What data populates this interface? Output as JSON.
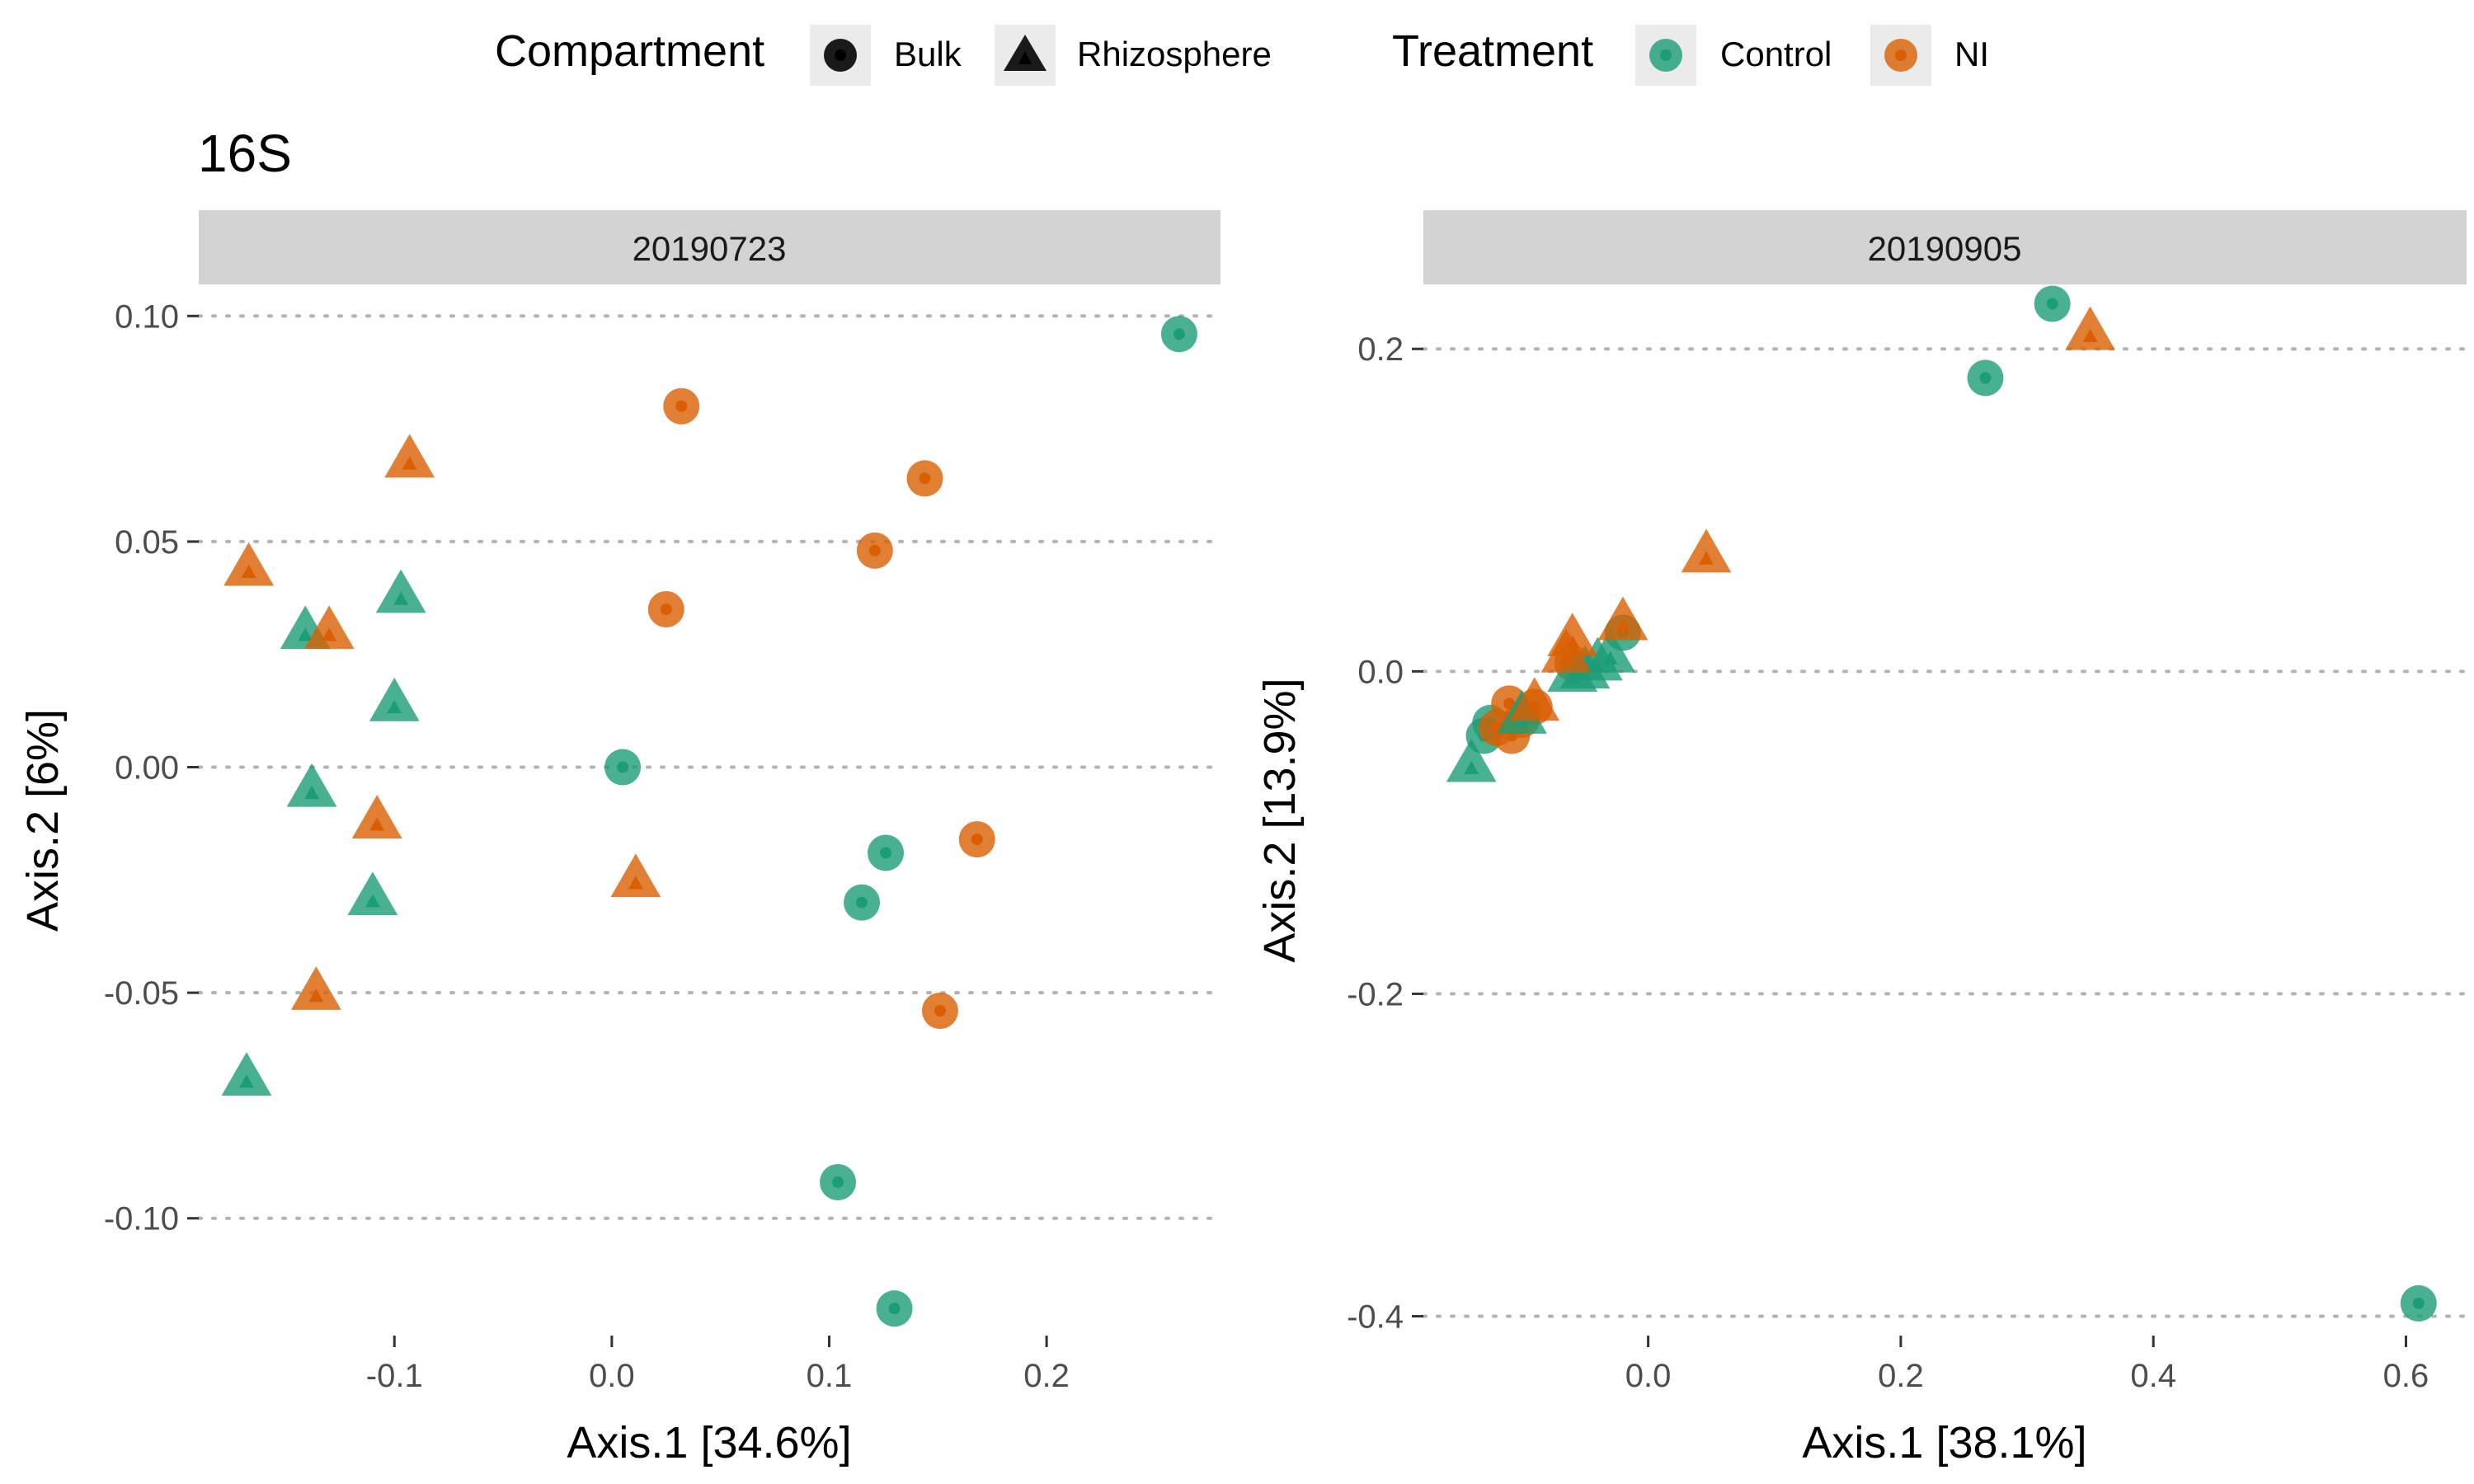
{
  "title": "16S",
  "legend": {
    "shape_title": "Compartment",
    "shape_items": [
      {
        "label": "Bulk",
        "shape": "circle"
      },
      {
        "label": "Rhizosphere",
        "shape": "triangle"
      }
    ],
    "color_title": "Treatment",
    "color_items": [
      {
        "label": "Control",
        "color": "#1b9e77"
      },
      {
        "label": "NI",
        "color": "#d95f02"
      }
    ],
    "position": "top"
  },
  "chart_data": [
    {
      "type": "scatter",
      "facet": "20190723",
      "xlabel": "Axis.1   [34.6%]",
      "ylabel": "Axis.2   [6%]",
      "xticks": [
        -0.1,
        0.0,
        0.1,
        0.2
      ],
      "xtick_labels": [
        "-0.1",
        "0.0",
        "0.1",
        "0.2"
      ],
      "yticks": [
        -0.1,
        -0.05,
        0.0,
        0.05,
        0.1
      ],
      "ytick_labels": [
        "-0.10",
        "-0.05",
        "0.00",
        "0.05",
        "0.10"
      ],
      "xlim": [
        -0.19,
        0.28
      ],
      "ylim": [
        -0.126,
        0.107
      ],
      "grid": "horizontal dotted",
      "points": [
        {
          "x": 0.261,
          "y": 0.096,
          "compartment": "Bulk",
          "treatment": "Control"
        },
        {
          "x": 0.005,
          "y": 0.0,
          "compartment": "Bulk",
          "treatment": "Control"
        },
        {
          "x": 0.126,
          "y": -0.019,
          "compartment": "Bulk",
          "treatment": "Control"
        },
        {
          "x": 0.115,
          "y": -0.03,
          "compartment": "Bulk",
          "treatment": "Control"
        },
        {
          "x": 0.104,
          "y": -0.092,
          "compartment": "Bulk",
          "treatment": "Control"
        },
        {
          "x": 0.13,
          "y": -0.12,
          "compartment": "Bulk",
          "treatment": "Control"
        },
        {
          "x": 0.032,
          "y": 0.08,
          "compartment": "Bulk",
          "treatment": "NI"
        },
        {
          "x": 0.144,
          "y": 0.064,
          "compartment": "Bulk",
          "treatment": "NI"
        },
        {
          "x": 0.121,
          "y": 0.048,
          "compartment": "Bulk",
          "treatment": "NI"
        },
        {
          "x": 0.025,
          "y": 0.035,
          "compartment": "Bulk",
          "treatment": "NI"
        },
        {
          "x": 0.168,
          "y": -0.016,
          "compartment": "Bulk",
          "treatment": "NI"
        },
        {
          "x": 0.151,
          "y": -0.054,
          "compartment": "Bulk",
          "treatment": "NI"
        },
        {
          "x": -0.141,
          "y": 0.03,
          "compartment": "Rhizosphere",
          "treatment": "Control"
        },
        {
          "x": -0.097,
          "y": 0.038,
          "compartment": "Rhizosphere",
          "treatment": "Control"
        },
        {
          "x": -0.1,
          "y": 0.014,
          "compartment": "Rhizosphere",
          "treatment": "Control"
        },
        {
          "x": -0.138,
          "y": -0.005,
          "compartment": "Rhizosphere",
          "treatment": "Control"
        },
        {
          "x": -0.11,
          "y": -0.029,
          "compartment": "Rhizosphere",
          "treatment": "Control"
        },
        {
          "x": -0.168,
          "y": -0.069,
          "compartment": "Rhizosphere",
          "treatment": "Control"
        },
        {
          "x": -0.093,
          "y": 0.068,
          "compartment": "Rhizosphere",
          "treatment": "NI"
        },
        {
          "x": -0.167,
          "y": 0.044,
          "compartment": "Rhizosphere",
          "treatment": "NI"
        },
        {
          "x": -0.13,
          "y": 0.03,
          "compartment": "Rhizosphere",
          "treatment": "NI"
        },
        {
          "x": -0.108,
          "y": -0.012,
          "compartment": "Rhizosphere",
          "treatment": "NI"
        },
        {
          "x": 0.011,
          "y": -0.025,
          "compartment": "Rhizosphere",
          "treatment": "NI"
        },
        {
          "x": -0.136,
          "y": -0.05,
          "compartment": "Rhizosphere",
          "treatment": "NI"
        }
      ]
    },
    {
      "type": "scatter",
      "facet": "20190905",
      "xlabel": "Axis.1   [38.1%]",
      "ylabel": "Axis.2   [13.9%]",
      "xticks": [
        0.0,
        0.2,
        0.4,
        0.6
      ],
      "xtick_labels": [
        "0.0",
        "0.2",
        "0.4",
        "0.6"
      ],
      "yticks": [
        -0.4,
        -0.2,
        0.0,
        0.2
      ],
      "ytick_labels": [
        "-0.4",
        "-0.2",
        "0.0",
        "0.2"
      ],
      "xlim": [
        -0.178,
        0.648
      ],
      "ylim": [
        -0.412,
        0.24
      ],
      "grid": "horizontal dotted",
      "points": [
        {
          "x": 0.32,
          "y": 0.228,
          "compartment": "Bulk",
          "treatment": "Control"
        },
        {
          "x": 0.267,
          "y": 0.182,
          "compartment": "Bulk",
          "treatment": "Control"
        },
        {
          "x": 0.61,
          "y": -0.392,
          "compartment": "Bulk",
          "treatment": "Control"
        },
        {
          "x": -0.125,
          "y": -0.032,
          "compartment": "Bulk",
          "treatment": "Control"
        },
        {
          "x": -0.13,
          "y": -0.04,
          "compartment": "Bulk",
          "treatment": "Control"
        },
        {
          "x": -0.02,
          "y": 0.024,
          "compartment": "Bulk",
          "treatment": "Control"
        },
        {
          "x": -0.11,
          "y": -0.02,
          "compartment": "Bulk",
          "treatment": "NI"
        },
        {
          "x": -0.1,
          "y": -0.03,
          "compartment": "Bulk",
          "treatment": "NI"
        },
        {
          "x": -0.12,
          "y": -0.035,
          "compartment": "Bulk",
          "treatment": "NI"
        },
        {
          "x": -0.108,
          "y": -0.04,
          "compartment": "Bulk",
          "treatment": "NI"
        },
        {
          "x": -0.09,
          "y": -0.022,
          "compartment": "Bulk",
          "treatment": "NI"
        },
        {
          "x": -0.06,
          "y": 0.005,
          "compartment": "Bulk",
          "treatment": "NI"
        },
        {
          "x": -0.14,
          "y": -0.058,
          "compartment": "Rhizosphere",
          "treatment": "Control"
        },
        {
          "x": -0.1,
          "y": -0.028,
          "compartment": "Rhizosphere",
          "treatment": "Control"
        },
        {
          "x": -0.06,
          "y": -0.002,
          "compartment": "Rhizosphere",
          "treatment": "Control"
        },
        {
          "x": -0.05,
          "y": 0.0,
          "compartment": "Rhizosphere",
          "treatment": "Control"
        },
        {
          "x": -0.03,
          "y": 0.01,
          "compartment": "Rhizosphere",
          "treatment": "Control"
        },
        {
          "x": -0.04,
          "y": 0.005,
          "compartment": "Rhizosphere",
          "treatment": "Control"
        },
        {
          "x": 0.35,
          "y": 0.21,
          "compartment": "Rhizosphere",
          "treatment": "NI"
        },
        {
          "x": 0.046,
          "y": 0.072,
          "compartment": "Rhizosphere",
          "treatment": "NI"
        },
        {
          "x": -0.02,
          "y": 0.03,
          "compartment": "Rhizosphere",
          "treatment": "NI"
        },
        {
          "x": -0.06,
          "y": 0.02,
          "compartment": "Rhizosphere",
          "treatment": "NI"
        },
        {
          "x": -0.065,
          "y": 0.01,
          "compartment": "Rhizosphere",
          "treatment": "NI"
        },
        {
          "x": -0.09,
          "y": -0.02,
          "compartment": "Rhizosphere",
          "treatment": "NI"
        }
      ]
    }
  ]
}
